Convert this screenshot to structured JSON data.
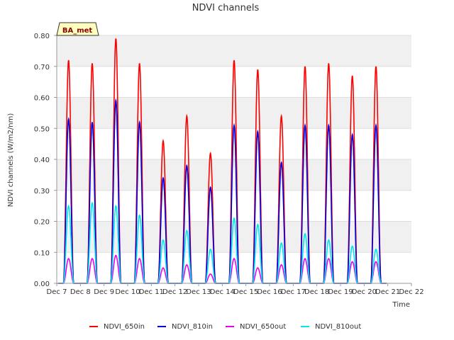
{
  "chart_data": {
    "type": "line",
    "title": "NDVI channels",
    "xlabel": "Time",
    "ylabel": "NDVI channels (W/m2/nm)",
    "ylim": [
      0.0,
      0.8
    ],
    "xlim": [
      7,
      22
    ],
    "yticks": [
      "0.00",
      "0.10",
      "0.20",
      "0.30",
      "0.40",
      "0.50",
      "0.60",
      "0.70",
      "0.80"
    ],
    "xticks": [
      "Dec 7",
      "Dec 8",
      "Dec 9",
      "Dec 10",
      "Dec 11",
      "Dec 12",
      "Dec 13",
      "Dec 14",
      "Dec 15",
      "Dec 16",
      "Dec 17",
      "Dec 18",
      "Dec 19",
      "Dec 20",
      "Dec 21",
      "Dec 22"
    ],
    "grid": true,
    "legend_position": "bottom",
    "badge": "BA_met",
    "x_day_of_peak": [
      7.5,
      8.5,
      9.5,
      10.5,
      11.5,
      12.5,
      13.5,
      14.5,
      15.5,
      16.5,
      17.5,
      18.5,
      19.5,
      20.5
    ],
    "series": [
      {
        "name": "NDVI_650in",
        "color": "#ff0000",
        "daily_peak": [
          0.72,
          0.71,
          0.79,
          0.71,
          0.46,
          0.54,
          0.42,
          0.72,
          0.69,
          0.54,
          0.7,
          0.71,
          0.67,
          0.7
        ]
      },
      {
        "name": "NDVI_810in",
        "color": "#0000dd",
        "daily_peak": [
          0.53,
          0.52,
          0.59,
          0.52,
          0.34,
          0.38,
          0.31,
          0.51,
          0.49,
          0.39,
          0.51,
          0.51,
          0.48,
          0.51
        ]
      },
      {
        "name": "NDVI_650out",
        "color": "#ee00ee",
        "daily_peak": [
          0.08,
          0.08,
          0.09,
          0.08,
          0.05,
          0.06,
          0.03,
          0.08,
          0.05,
          0.06,
          0.08,
          0.08,
          0.07,
          0.07
        ]
      },
      {
        "name": "NDVI_810out",
        "color": "#00e5ee",
        "daily_peak": [
          0.25,
          0.26,
          0.25,
          0.22,
          0.14,
          0.17,
          0.11,
          0.21,
          0.19,
          0.13,
          0.16,
          0.14,
          0.12,
          0.11
        ]
      }
    ]
  }
}
